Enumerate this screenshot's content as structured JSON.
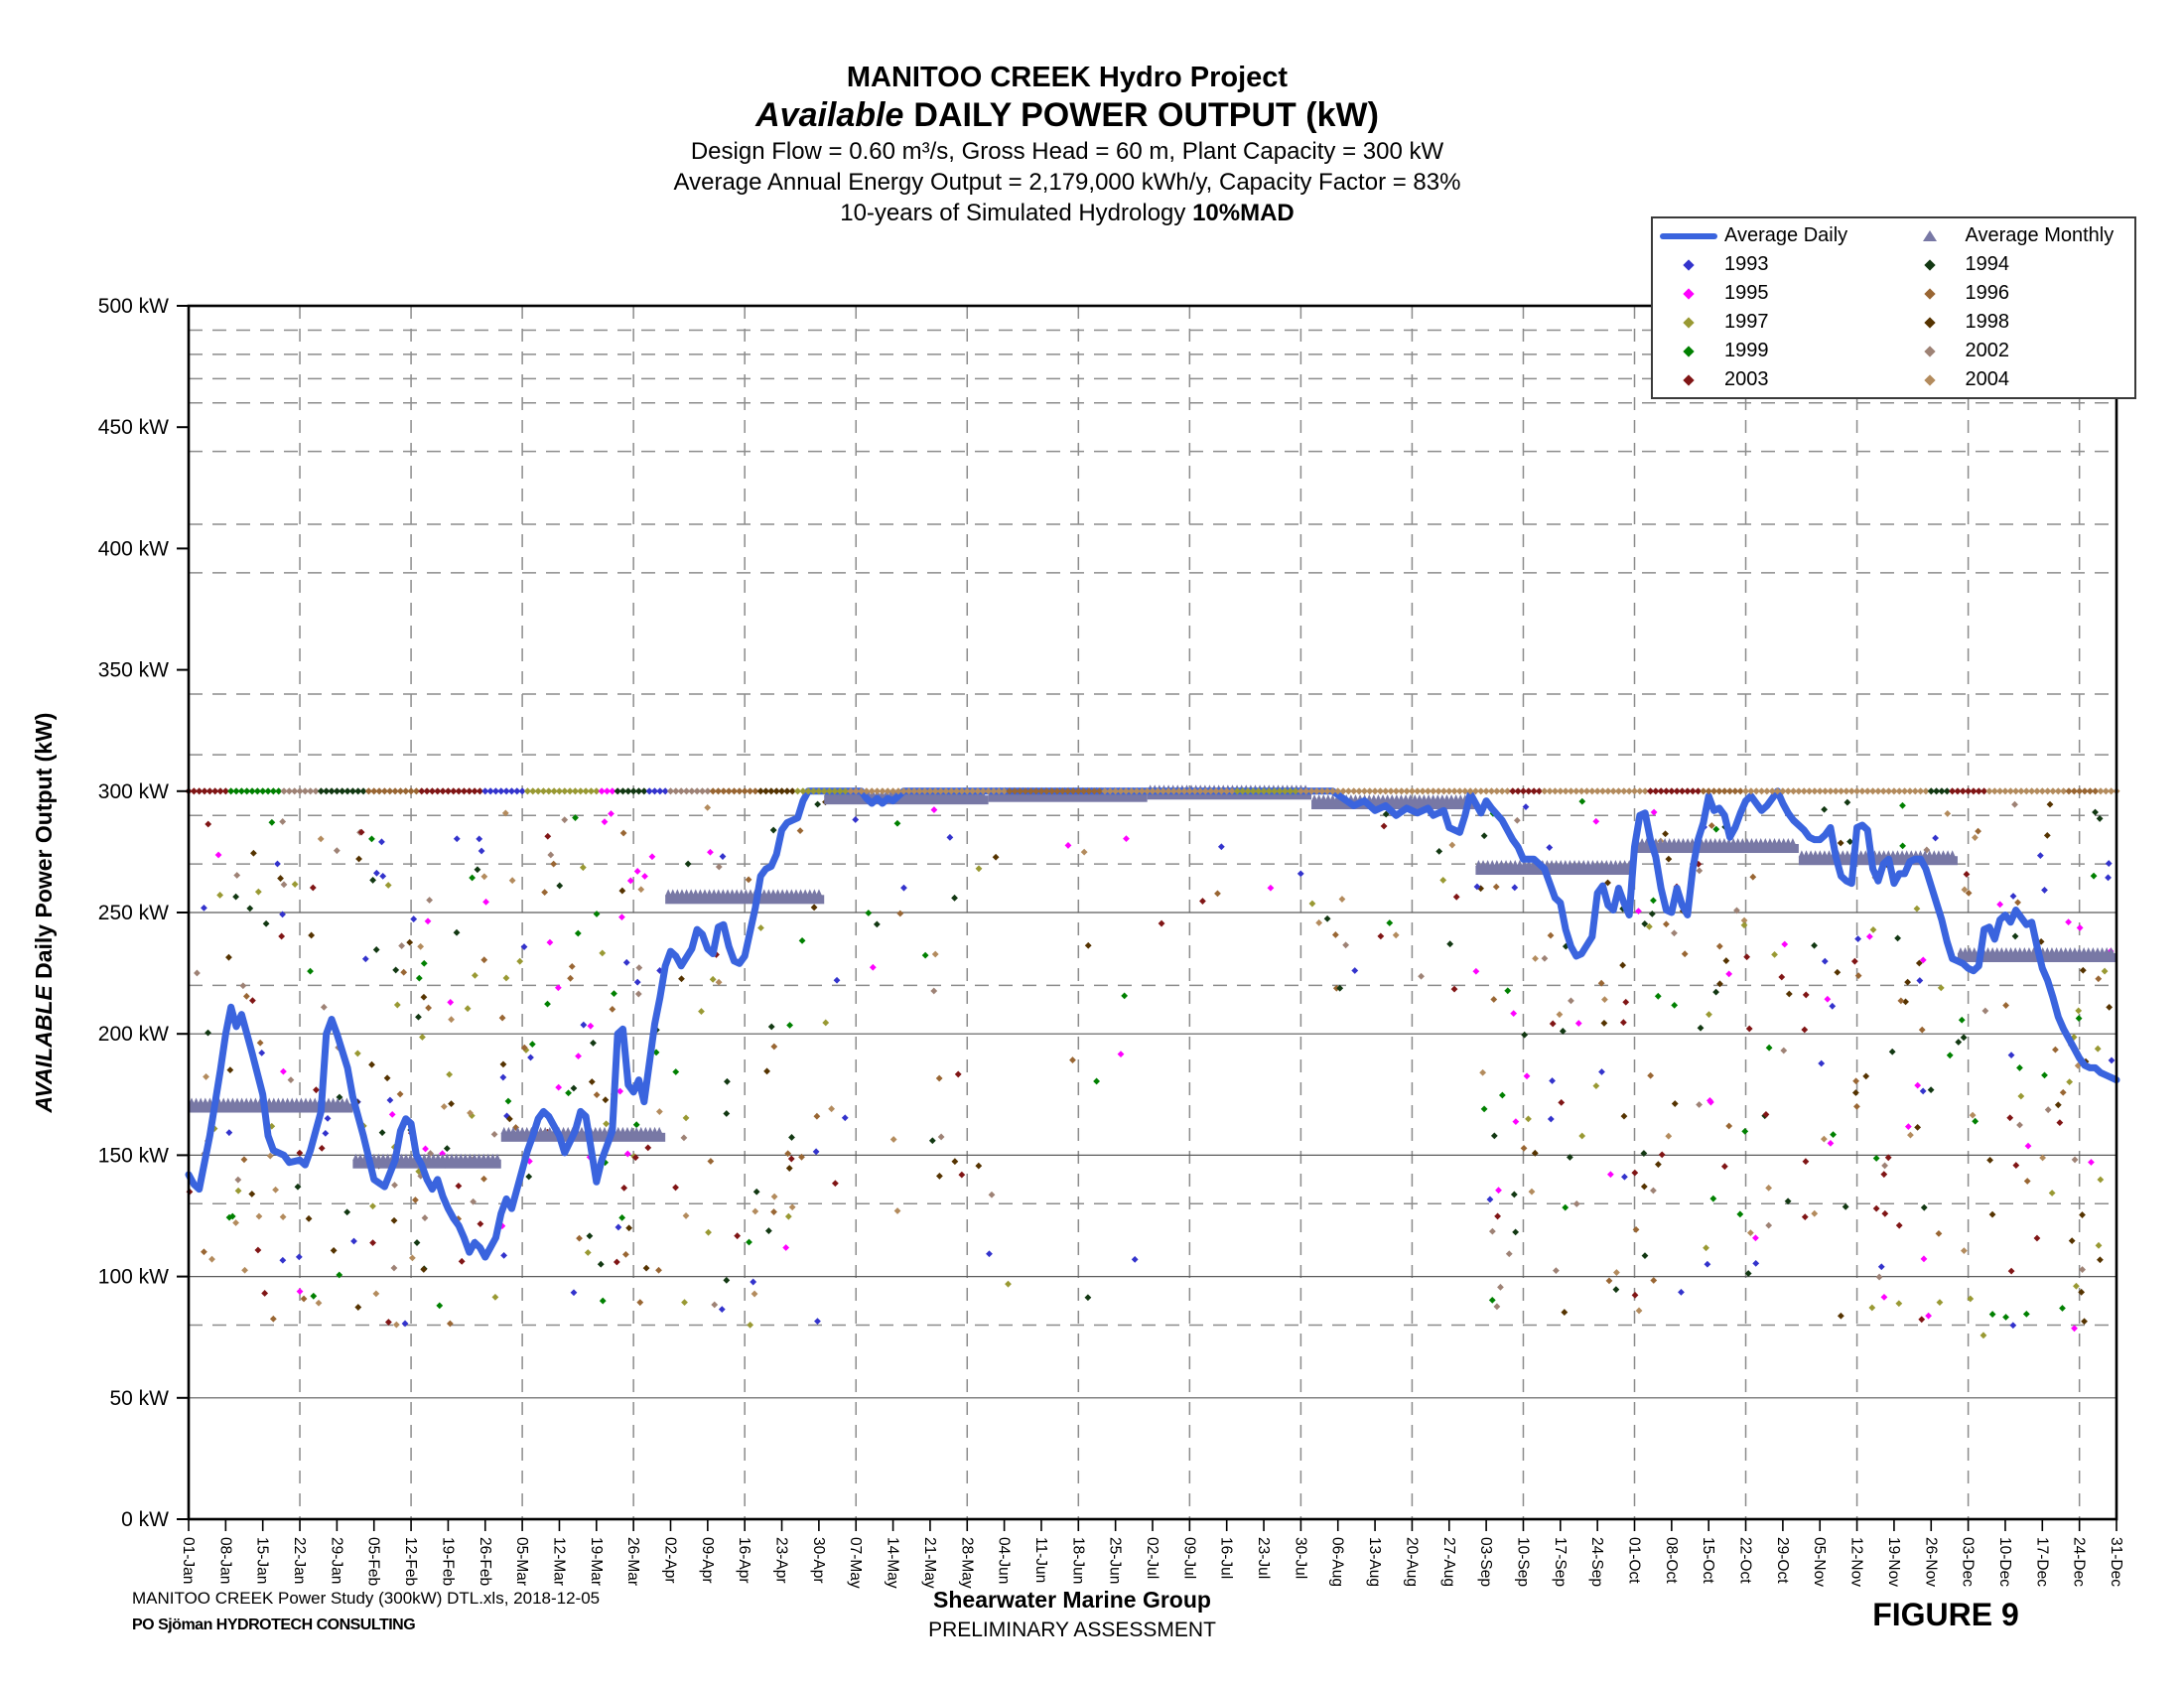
{
  "title": {
    "line1": "MANITOO CREEK Hydro Project",
    "line2_italic": "Available",
    "line2_rest": "DAILY POWER OUTPUT (kW)",
    "line3": "Design Flow = 0.60 m³/s, Gross Head = 60 m, Plant Capacity = 300 kW",
    "line4": "Average Annual Energy Output = 2,179,000 kWh/y, Capacity Factor = 83%",
    "line5_prefix": "10-years of Simulated Hydrology ",
    "line5_bold": "10%MAD"
  },
  "legend": {
    "average_daily_label": "Average Daily",
    "average_monthly_label": "Average Monthly"
  },
  "footer": {
    "left_line1": "MANITOO CREEK Power Study (300kW) DTL.xls, 2018-12-05",
    "left_line2": "PO Sjöman HYDROTECH CONSULTING",
    "center_line1": "Shearwater Marine Group",
    "center_line2": "PRELIMINARY ASSESSMENT",
    "figure_label": "FIGURE 9"
  },
  "chart_data": {
    "type": "line+scatter",
    "title": "Available DAILY POWER OUTPUT (kW)",
    "ylabel_italic": "AVAILABLE ",
    "ylabel_rest": "Daily Power Output (kW)",
    "ylim": [
      0,
      500
    ],
    "capacity_kw": 300,
    "avg_daily_color": "#3A64DE",
    "avg_monthly_color": "#7878A5",
    "grid": {
      "dashed_levels": [
        490,
        480,
        470,
        460,
        440,
        410,
        390,
        340,
        315,
        290,
        270,
        220,
        130,
        80
      ],
      "solid_levels": [
        50,
        100,
        150,
        200,
        250,
        300
      ],
      "vertical_every_days": 21
    },
    "y_ticks": [
      {
        "v": 0,
        "label": "0 kW"
      },
      {
        "v": 50,
        "label": "50 kW"
      },
      {
        "v": 100,
        "label": "100 kW"
      },
      {
        "v": 150,
        "label": "150 kW"
      },
      {
        "v": 200,
        "label": "200 kW"
      },
      {
        "v": 250,
        "label": "250 kW"
      },
      {
        "v": 300,
        "label": "300 kW"
      },
      {
        "v": 350,
        "label": "350 kW"
      },
      {
        "v": 400,
        "label": "400 kW"
      },
      {
        "v": 450,
        "label": "450 kW"
      },
      {
        "v": 500,
        "label": "500 kW"
      }
    ],
    "x_tick_labels": [
      "01-Jan",
      "08-Jan",
      "15-Jan",
      "22-Jan",
      "29-Jan",
      "05-Feb",
      "12-Feb",
      "19-Feb",
      "26-Feb",
      "05-Mar",
      "12-Mar",
      "19-Mar",
      "26-Mar",
      "02-Apr",
      "09-Apr",
      "16-Apr",
      "23-Apr",
      "30-Apr",
      "07-May",
      "14-May",
      "21-May",
      "28-May",
      "04-Jun",
      "11-Jun",
      "18-Jun",
      "25-Jun",
      "02-Jul",
      "09-Jul",
      "16-Jul",
      "23-Jul",
      "30-Jul",
      "06-Aug",
      "13-Aug",
      "20-Aug",
      "27-Aug",
      "03-Sep",
      "10-Sep",
      "17-Sep",
      "24-Sep",
      "01-Oct",
      "08-Oct",
      "15-Oct",
      "22-Oct",
      "29-Oct",
      "05-Nov",
      "12-Nov",
      "19-Nov",
      "26-Nov",
      "03-Dec",
      "10-Dec",
      "17-Dec",
      "24-Dec",
      "31-Dec"
    ],
    "series": [
      {
        "name": "1993",
        "color": "#3333CC"
      },
      {
        "name": "1994",
        "color": "#123812"
      },
      {
        "name": "1995",
        "color": "#FF00FF"
      },
      {
        "name": "1996",
        "color": "#996633"
      },
      {
        "name": "1997",
        "color": "#999933"
      },
      {
        "name": "1998",
        "color": "#553300"
      },
      {
        "name": "1999",
        "color": "#008000"
      },
      {
        "name": "2002",
        "color": "#9E8275"
      },
      {
        "name": "2003",
        "color": "#801515"
      },
      {
        "name": "2004",
        "color": "#B38B5D"
      }
    ],
    "avg_monthly": [
      {
        "month": "Jan",
        "start": 0,
        "end": 30,
        "value": 170
      },
      {
        "month": "Feb",
        "start": 31,
        "end": 58,
        "value": 147
      },
      {
        "month": "Mar",
        "start": 59,
        "end": 89,
        "value": 158
      },
      {
        "month": "Apr",
        "start": 90,
        "end": 119,
        "value": 256
      },
      {
        "month": "May",
        "start": 120,
        "end": 150,
        "value": 297
      },
      {
        "month": "Jun",
        "start": 151,
        "end": 180,
        "value": 298
      },
      {
        "month": "Jul",
        "start": 181,
        "end": 211,
        "value": 299
      },
      {
        "month": "Aug",
        "start": 212,
        "end": 242,
        "value": 295
      },
      {
        "month": "Sep",
        "start": 243,
        "end": 272,
        "value": 268
      },
      {
        "month": "Oct",
        "start": 273,
        "end": 303,
        "value": 277
      },
      {
        "month": "Nov",
        "start": 304,
        "end": 333,
        "value": 272
      },
      {
        "month": "Dec",
        "start": 334,
        "end": 364,
        "value": 232
      }
    ],
    "avg_daily": [
      [
        0,
        142
      ],
      [
        1,
        138
      ],
      [
        2,
        136
      ],
      [
        4,
        158
      ],
      [
        6,
        185
      ],
      [
        7,
        200
      ],
      [
        8,
        211
      ],
      [
        9,
        203
      ],
      [
        10,
        208
      ],
      [
        12,
        192
      ],
      [
        14,
        175
      ],
      [
        15,
        158
      ],
      [
        16,
        152
      ],
      [
        18,
        150
      ],
      [
        19,
        147
      ],
      [
        21,
        148
      ],
      [
        22,
        146
      ],
      [
        23,
        152
      ],
      [
        24,
        160
      ],
      [
        25,
        168
      ],
      [
        26,
        200
      ],
      [
        27,
        206
      ],
      [
        28,
        200
      ],
      [
        29,
        193
      ],
      [
        30,
        186
      ],
      [
        31,
        174
      ],
      [
        33,
        158
      ],
      [
        35,
        140
      ],
      [
        37,
        137
      ],
      [
        39,
        148
      ],
      [
        40,
        160
      ],
      [
        41,
        165
      ],
      [
        42,
        163
      ],
      [
        43,
        150
      ],
      [
        44,
        146
      ],
      [
        45,
        140
      ],
      [
        46,
        136
      ],
      [
        47,
        140
      ],
      [
        48,
        133
      ],
      [
        49,
        128
      ],
      [
        50,
        124
      ],
      [
        51,
        121
      ],
      [
        52,
        116
      ],
      [
        53,
        110
      ],
      [
        54,
        114
      ],
      [
        55,
        112
      ],
      [
        56,
        108
      ],
      [
        57,
        112
      ],
      [
        58,
        116
      ],
      [
        59,
        126
      ],
      [
        60,
        132
      ],
      [
        61,
        128
      ],
      [
        62,
        136
      ],
      [
        63,
        144
      ],
      [
        64,
        152
      ],
      [
        65,
        158
      ],
      [
        66,
        165
      ],
      [
        67,
        168
      ],
      [
        68,
        166
      ],
      [
        70,
        158
      ],
      [
        71,
        151
      ],
      [
        73,
        160
      ],
      [
        74,
        168
      ],
      [
        75,
        166
      ],
      [
        77,
        139
      ],
      [
        78,
        148
      ],
      [
        80,
        160
      ],
      [
        81,
        200
      ],
      [
        82,
        202
      ],
      [
        83,
        179
      ],
      [
        84,
        176
      ],
      [
        85,
        181
      ],
      [
        86,
        172
      ],
      [
        88,
        204
      ],
      [
        89,
        215
      ],
      [
        90,
        228
      ],
      [
        91,
        234
      ],
      [
        92,
        232
      ],
      [
        93,
        228
      ],
      [
        95,
        235
      ],
      [
        96,
        243
      ],
      [
        97,
        241
      ],
      [
        98,
        235
      ],
      [
        99,
        233
      ],
      [
        100,
        244
      ],
      [
        101,
        245
      ],
      [
        102,
        236
      ],
      [
        103,
        230
      ],
      [
        104,
        229
      ],
      [
        105,
        232
      ],
      [
        106,
        242
      ],
      [
        107,
        252
      ],
      [
        108,
        265
      ],
      [
        109,
        268
      ],
      [
        110,
        269
      ],
      [
        111,
        274
      ],
      [
        112,
        284
      ],
      [
        113,
        287
      ],
      [
        114,
        288
      ],
      [
        115,
        289
      ],
      [
        116,
        296
      ],
      [
        117,
        300
      ],
      [
        125,
        300
      ],
      [
        127,
        300
      ],
      [
        128,
        297
      ],
      [
        129,
        295
      ],
      [
        130,
        297
      ],
      [
        131,
        295
      ],
      [
        132,
        297
      ],
      [
        133,
        296
      ],
      [
        135,
        300
      ],
      [
        212,
        300
      ],
      [
        216,
        300
      ],
      [
        218,
        297
      ],
      [
        220,
        294
      ],
      [
        222,
        296
      ],
      [
        224,
        292
      ],
      [
        226,
        294
      ],
      [
        228,
        290
      ],
      [
        230,
        293
      ],
      [
        232,
        291
      ],
      [
        234,
        293
      ],
      [
        235,
        290
      ],
      [
        237,
        292
      ],
      [
        238,
        285
      ],
      [
        240,
        283
      ],
      [
        241,
        290
      ],
      [
        242,
        299
      ],
      [
        243,
        295
      ],
      [
        244,
        291
      ],
      [
        245,
        296
      ],
      [
        246,
        293
      ],
      [
        248,
        288
      ],
      [
        250,
        280
      ],
      [
        251,
        277
      ],
      [
        252,
        272
      ],
      [
        254,
        272
      ],
      [
        256,
        268
      ],
      [
        257,
        262
      ],
      [
        258,
        256
      ],
      [
        259,
        254
      ],
      [
        260,
        243
      ],
      [
        261,
        236
      ],
      [
        262,
        232
      ],
      [
        263,
        233
      ],
      [
        265,
        240
      ],
      [
        266,
        258
      ],
      [
        267,
        261
      ],
      [
        268,
        253
      ],
      [
        269,
        251
      ],
      [
        270,
        260
      ],
      [
        271,
        254
      ],
      [
        272,
        249
      ],
      [
        273,
        277
      ],
      [
        274,
        290
      ],
      [
        275,
        291
      ],
      [
        276,
        280
      ],
      [
        277,
        273
      ],
      [
        278,
        260
      ],
      [
        279,
        251
      ],
      [
        280,
        250
      ],
      [
        281,
        260
      ],
      [
        282,
        253
      ],
      [
        283,
        249
      ],
      [
        284,
        268
      ],
      [
        285,
        280
      ],
      [
        286,
        287
      ],
      [
        287,
        298
      ],
      [
        288,
        292
      ],
      [
        289,
        293
      ],
      [
        290,
        290
      ],
      [
        291,
        281
      ],
      [
        292,
        285
      ],
      [
        293,
        291
      ],
      [
        294,
        296
      ],
      [
        295,
        298
      ],
      [
        296,
        295
      ],
      [
        297,
        292
      ],
      [
        298,
        294
      ],
      [
        299,
        297
      ],
      [
        300,
        300
      ],
      [
        301,
        295
      ],
      [
        302,
        291
      ],
      [
        303,
        288
      ],
      [
        304,
        286
      ],
      [
        305,
        284
      ],
      [
        306,
        281
      ],
      [
        307,
        280
      ],
      [
        308,
        280
      ],
      [
        309,
        282
      ],
      [
        310,
        285
      ],
      [
        311,
        273
      ],
      [
        312,
        265
      ],
      [
        313,
        263
      ],
      [
        314,
        262
      ],
      [
        315,
        285
      ],
      [
        316,
        286
      ],
      [
        317,
        284
      ],
      [
        318,
        268
      ],
      [
        319,
        263
      ],
      [
        320,
        270
      ],
      [
        321,
        272
      ],
      [
        322,
        262
      ],
      [
        323,
        266
      ],
      [
        324,
        266
      ],
      [
        325,
        271
      ],
      [
        326,
        272
      ],
      [
        327,
        272
      ],
      [
        328,
        268
      ],
      [
        329,
        261
      ],
      [
        330,
        254
      ],
      [
        331,
        247
      ],
      [
        332,
        238
      ],
      [
        333,
        231
      ],
      [
        334,
        230
      ],
      [
        335,
        229
      ],
      [
        336,
        227
      ],
      [
        337,
        226
      ],
      [
        338,
        228
      ],
      [
        339,
        243
      ],
      [
        340,
        244
      ],
      [
        341,
        239
      ],
      [
        342,
        247
      ],
      [
        343,
        249
      ],
      [
        344,
        246
      ],
      [
        345,
        251
      ],
      [
        346,
        248
      ],
      [
        347,
        245
      ],
      [
        348,
        246
      ],
      [
        349,
        236
      ],
      [
        350,
        227
      ],
      [
        351,
        222
      ],
      [
        352,
        215
      ],
      [
        353,
        207
      ],
      [
        354,
        202
      ],
      [
        355,
        198
      ],
      [
        356,
        194
      ],
      [
        357,
        190
      ],
      [
        358,
        187
      ],
      [
        359,
        186
      ],
      [
        360,
        186
      ],
      [
        361,
        184
      ],
      [
        362,
        183
      ],
      [
        363,
        182
      ],
      [
        364,
        181
      ]
    ],
    "capacity_row_runs": [
      [
        8,
        8
      ],
      [
        6,
        10
      ],
      [
        7,
        7
      ],
      [
        1,
        9
      ],
      [
        3,
        10
      ],
      [
        8,
        12
      ],
      [
        0,
        8
      ],
      [
        4,
        14
      ],
      [
        2,
        3
      ],
      [
        1,
        6
      ],
      [
        0,
        4
      ],
      [
        7,
        8
      ],
      [
        3,
        9
      ],
      [
        5,
        7
      ],
      [
        4,
        10
      ],
      [
        9,
        30
      ],
      [
        3,
        18
      ],
      [
        9,
        25
      ],
      [
        4,
        12
      ],
      [
        9,
        40
      ],
      [
        8,
        6
      ],
      [
        9,
        20
      ],
      [
        8,
        10
      ],
      [
        3,
        8
      ],
      [
        9,
        35
      ],
      [
        1,
        4
      ],
      [
        8,
        7
      ],
      [
        9,
        15
      ],
      [
        3,
        6
      ],
      [
        9,
        14
      ]
    ],
    "scatter_spec": {
      "seed": 1234567,
      "months": [
        {
          "d0": 0,
          "d1": 30,
          "count": 80,
          "lo": 75,
          "hi": 290
        },
        {
          "d0": 31,
          "d1": 58,
          "count": 95,
          "lo": 75,
          "hi": 285
        },
        {
          "d0": 59,
          "d1": 89,
          "count": 95,
          "lo": 75,
          "hi": 292
        },
        {
          "d0": 90,
          "d1": 119,
          "count": 55,
          "lo": 80,
          "hi": 295
        },
        {
          "d0": 120,
          "d1": 150,
          "count": 30,
          "lo": 120,
          "hi": 296
        },
        {
          "d0": 151,
          "d1": 180,
          "count": 14,
          "lo": 80,
          "hi": 295
        },
        {
          "d0": 181,
          "d1": 211,
          "count": 6,
          "lo": 230,
          "hi": 296
        },
        {
          "d0": 212,
          "d1": 242,
          "count": 22,
          "lo": 215,
          "hi": 297
        },
        {
          "d0": 243,
          "d1": 272,
          "count": 70,
          "lo": 85,
          "hi": 296
        },
        {
          "d0": 273,
          "d1": 303,
          "count": 75,
          "lo": 85,
          "hi": 296
        },
        {
          "d0": 304,
          "d1": 333,
          "count": 75,
          "lo": 80,
          "hi": 296
        },
        {
          "d0": 334,
          "d1": 364,
          "count": 85,
          "lo": 75,
          "hi": 296
        }
      ]
    }
  }
}
